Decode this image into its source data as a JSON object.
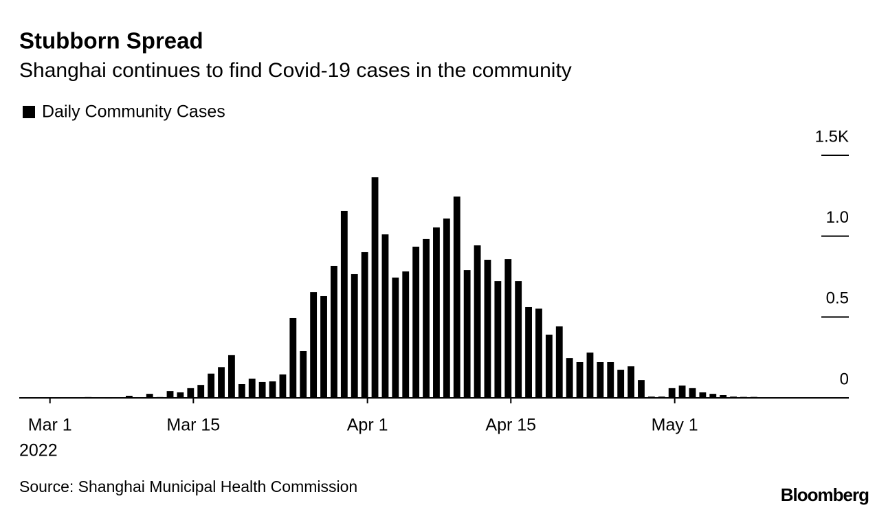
{
  "chart_data": {
    "type": "bar",
    "title": "Stubborn Spread",
    "subtitle": "Shanghai continues to find Covid-19 cases in the community",
    "source": "Source: Shanghai Municipal Health Commission",
    "brand": "Bloomberg",
    "x_year_label": "2022",
    "x": [
      "2022-03-01",
      "2022-03-02",
      "2022-03-03",
      "2022-03-04",
      "2022-03-05",
      "2022-03-06",
      "2022-03-07",
      "2022-03-08",
      "2022-03-09",
      "2022-03-10",
      "2022-03-11",
      "2022-03-12",
      "2022-03-13",
      "2022-03-14",
      "2022-03-15",
      "2022-03-16",
      "2022-03-17",
      "2022-03-18",
      "2022-03-19",
      "2022-03-20",
      "2022-03-21",
      "2022-03-22",
      "2022-03-23",
      "2022-03-24",
      "2022-03-25",
      "2022-03-26",
      "2022-03-27",
      "2022-03-28",
      "2022-03-29",
      "2022-03-30",
      "2022-03-31",
      "2022-04-01",
      "2022-04-02",
      "2022-04-03",
      "2022-04-04",
      "2022-04-05",
      "2022-04-06",
      "2022-04-07",
      "2022-04-08",
      "2022-04-09",
      "2022-04-10",
      "2022-04-11",
      "2022-04-12",
      "2022-04-13",
      "2022-04-14",
      "2022-04-15",
      "2022-04-16",
      "2022-04-17",
      "2022-04-18",
      "2022-04-19",
      "2022-04-20",
      "2022-04-21",
      "2022-04-22",
      "2022-04-23",
      "2022-04-24",
      "2022-04-25",
      "2022-04-26",
      "2022-04-27",
      "2022-04-28",
      "2022-04-29",
      "2022-04-30",
      "2022-05-01",
      "2022-05-02",
      "2022-05-03",
      "2022-05-04",
      "2022-05-05",
      "2022-05-06",
      "2022-05-07",
      "2022-05-08",
      "2022-05-09",
      "2022-05-10",
      "2022-05-11"
    ],
    "series": [
      {
        "name": "Daily Community Cases",
        "color": "#000000",
        "values": [
          2,
          2,
          3,
          3,
          5,
          3,
          2,
          3,
          13,
          3,
          25,
          5,
          42,
          34,
          60,
          80,
          150,
          190,
          264,
          85,
          119,
          98,
          102,
          145,
          493,
          289,
          654,
          629,
          816,
          1156,
          765,
          901,
          1364,
          1011,
          744,
          782,
          935,
          982,
          1054,
          1109,
          1245,
          790,
          943,
          854,
          722,
          858,
          722,
          561,
          552,
          391,
          442,
          246,
          221,
          280,
          221,
          221,
          174,
          195,
          110,
          8,
          8,
          60,
          76,
          60,
          34,
          25,
          17,
          8,
          6,
          6,
          4,
          4
        ]
      }
    ],
    "xlim": [
      "2022-02-26",
      "2022-05-18"
    ],
    "xticks": [
      {
        "value": "2022-03-01",
        "label": "Mar 1"
      },
      {
        "value": "2022-03-15",
        "label": "Mar 15"
      },
      {
        "value": "2022-04-01",
        "label": "Apr 1"
      },
      {
        "value": "2022-04-15",
        "label": "Apr 15"
      },
      {
        "value": "2022-05-01",
        "label": "May 1"
      }
    ],
    "ylim": [
      0,
      1500
    ],
    "yticks": [
      0,
      {
        "value": 500,
        "label": "0.5"
      },
      {
        "value": 1000,
        "label": "1.0"
      },
      {
        "value": 1500,
        "label": "1.5K"
      }
    ]
  }
}
